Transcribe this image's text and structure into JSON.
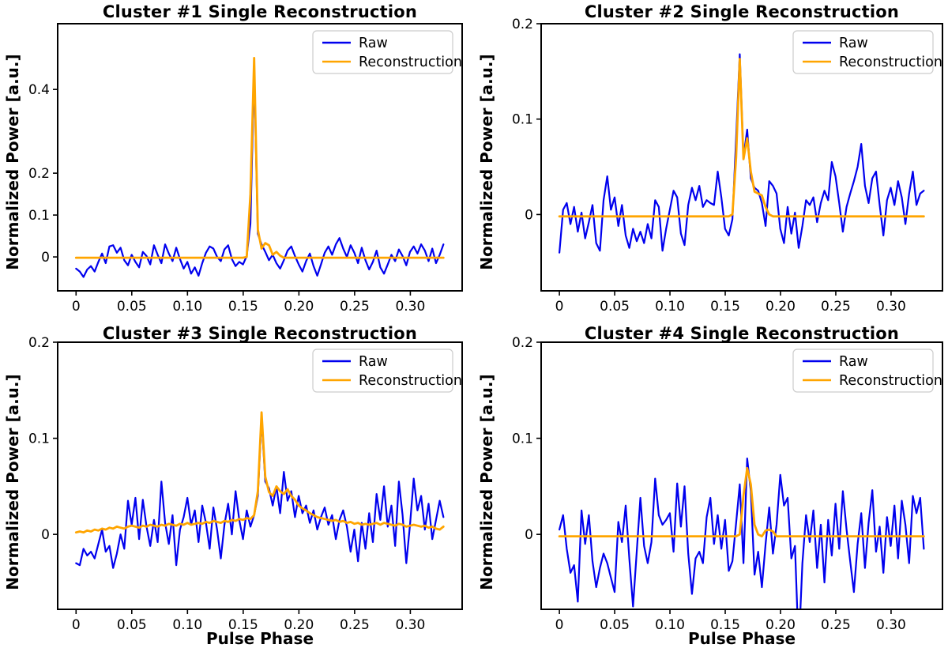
{
  "chart_data": [
    {
      "type": "line",
      "title": "Cluster #1 Single Reconstruction",
      "ylabel": "Normalized Power [a.u.]",
      "x_start": 0,
      "x_step": 0.00333,
      "xlim": [
        -0.0165,
        0.3465
      ],
      "ylim": [
        -0.081,
        0.557
      ],
      "xtick_values": [
        0,
        0.05,
        0.1,
        0.15,
        0.2,
        0.25,
        0.3
      ],
      "xtick_labels": [
        "0",
        "0.05",
        "0.10",
        "0.15",
        "0.20",
        "0.25",
        "0.30"
      ],
      "ytick_values": [
        0,
        0.1,
        0.2,
        0.4
      ],
      "ytick_labels": [
        "0",
        "0.1",
        "0.2",
        "0.4"
      ],
      "grid": false,
      "legend_position": "upper right",
      "series": [
        {
          "name": "Raw",
          "color": "#0000EE",
          "line_width": 2.2,
          "values": [
            -0.028,
            -0.035,
            -0.048,
            -0.03,
            -0.022,
            -0.035,
            -0.012,
            0.008,
            -0.015,
            0.025,
            0.028,
            0.01,
            0.022,
            -0.008,
            -0.02,
            0.005,
            -0.012,
            -0.025,
            0.012,
            0.002,
            -0.018,
            0.028,
            0.005,
            -0.015,
            0.03,
            0.008,
            -0.01,
            0.022,
            -0.005,
            -0.028,
            -0.012,
            -0.04,
            -0.025,
            -0.045,
            -0.015,
            0.01,
            0.025,
            0.02,
            0.0,
            -0.01,
            0.018,
            0.028,
            -0.005,
            -0.022,
            -0.012,
            -0.018,
            0.002,
            0.08,
            0.443,
            0.055,
            0.03,
            0.012,
            -0.008,
            0.005,
            -0.015,
            -0.028,
            -0.008,
            0.015,
            0.025,
            0.002,
            -0.018,
            -0.035,
            -0.01,
            0.008,
            -0.022,
            -0.045,
            -0.018,
            0.01,
            0.025,
            0.005,
            0.03,
            0.045,
            0.02,
            0.0,
            0.028,
            0.01,
            -0.015,
            0.022,
            -0.008,
            -0.03,
            -0.012,
            0.015,
            -0.025,
            -0.04,
            -0.018,
            0.005,
            -0.01,
            0.018,
            0.002,
            -0.02,
            0.012,
            0.025,
            0.008,
            0.03,
            0.015,
            -0.01,
            0.02,
            -0.015,
            0.005,
            0.03
          ]
        },
        {
          "name": "Reconstruction",
          "color": "#FFA500",
          "line_width": 2.8,
          "values": [
            -0.002,
            -0.002,
            -0.002,
            -0.002,
            -0.002,
            -0.002,
            -0.002,
            -0.002,
            -0.002,
            -0.002,
            -0.002,
            -0.002,
            -0.002,
            -0.002,
            -0.002,
            -0.002,
            -0.002,
            -0.002,
            -0.002,
            -0.002,
            -0.002,
            -0.002,
            -0.002,
            -0.002,
            -0.002,
            -0.002,
            -0.002,
            -0.002,
            -0.002,
            -0.002,
            -0.002,
            -0.002,
            -0.002,
            -0.002,
            -0.002,
            -0.002,
            -0.002,
            -0.002,
            -0.002,
            -0.002,
            -0.002,
            -0.002,
            -0.002,
            -0.002,
            -0.002,
            -0.002,
            0.0,
            0.15,
            0.475,
            0.065,
            0.02,
            0.033,
            0.028,
            0.005,
            0.012,
            0.003,
            -0.002,
            -0.002,
            -0.002,
            -0.002,
            -0.002,
            -0.002,
            -0.002,
            -0.002,
            -0.002,
            -0.002,
            -0.002,
            -0.002,
            -0.002,
            -0.002,
            -0.002,
            -0.002,
            -0.002,
            -0.002,
            -0.002,
            -0.002,
            -0.002,
            -0.002,
            -0.002,
            -0.002,
            -0.002,
            -0.002,
            -0.002,
            -0.002,
            -0.002,
            -0.002,
            -0.002,
            -0.002,
            -0.002,
            -0.002,
            -0.002,
            -0.002,
            -0.002,
            -0.002,
            -0.002,
            -0.002,
            -0.002,
            -0.002,
            -0.002,
            -0.002
          ]
        }
      ]
    },
    {
      "type": "line",
      "title": "Cluster #2 Single Reconstruction",
      "ylabel": "Normalized Power [a.u.]",
      "x_start": 0,
      "x_step": 0.00333,
      "xlim": [
        -0.0165,
        0.3465
      ],
      "ylim": [
        -0.08,
        0.2
      ],
      "xtick_values": [
        0,
        0.05,
        0.1,
        0.15,
        0.2,
        0.25,
        0.3
      ],
      "xtick_labels": [
        "0",
        "0.05",
        "0.10",
        "0.15",
        "0.20",
        "0.25",
        "0.30"
      ],
      "ytick_values": [
        0,
        0.1,
        0.2
      ],
      "ytick_labels": [
        "0",
        "0.1",
        "0.2"
      ],
      "grid": false,
      "legend_position": "upper right",
      "series": [
        {
          "name": "Raw",
          "color": "#0000EE",
          "line_width": 2.2,
          "values": [
            -0.04,
            0.005,
            0.012,
            -0.01,
            0.008,
            -0.018,
            0.002,
            -0.025,
            -0.008,
            0.01,
            -0.03,
            -0.038,
            0.015,
            0.04,
            0.005,
            0.018,
            -0.012,
            0.01,
            -0.022,
            -0.035,
            -0.015,
            -0.028,
            -0.018,
            -0.03,
            -0.01,
            -0.025,
            0.015,
            0.008,
            -0.038,
            -0.015,
            0.005,
            0.025,
            0.018,
            -0.02,
            -0.032,
            0.01,
            0.028,
            0.015,
            0.03,
            0.008,
            0.015,
            0.012,
            0.01,
            0.045,
            0.018,
            -0.015,
            -0.022,
            -0.005,
            0.08,
            0.168,
            0.06,
            0.089,
            0.038,
            0.028,
            0.025,
            0.012,
            -0.012,
            0.035,
            0.03,
            0.022,
            -0.015,
            -0.03,
            0.008,
            -0.02,
            0.002,
            -0.035,
            -0.012,
            0.015,
            0.01,
            0.018,
            -0.008,
            0.012,
            0.025,
            0.015,
            0.055,
            0.04,
            0.012,
            -0.018,
            0.008,
            0.022,
            0.035,
            0.05,
            0.074,
            0.03,
            0.012,
            0.038,
            0.045,
            0.01,
            -0.022,
            0.015,
            0.028,
            0.01,
            0.035,
            0.018,
            -0.01,
            0.022,
            0.045,
            0.01,
            0.022,
            0.025
          ]
        },
        {
          "name": "Reconstruction",
          "color": "#FFA500",
          "line_width": 2.8,
          "values": [
            -0.002,
            -0.002,
            -0.002,
            -0.002,
            -0.002,
            -0.002,
            -0.002,
            -0.002,
            -0.002,
            -0.002,
            -0.002,
            -0.002,
            -0.002,
            -0.002,
            -0.002,
            -0.002,
            -0.002,
            -0.002,
            -0.002,
            -0.002,
            -0.002,
            -0.002,
            -0.002,
            -0.002,
            -0.002,
            -0.002,
            -0.002,
            -0.002,
            -0.002,
            -0.002,
            -0.002,
            -0.002,
            -0.002,
            -0.002,
            -0.002,
            -0.002,
            -0.002,
            -0.002,
            -0.002,
            -0.002,
            -0.002,
            -0.002,
            -0.002,
            -0.002,
            -0.002,
            -0.002,
            -0.002,
            0.0,
            0.06,
            0.163,
            0.058,
            0.08,
            0.045,
            0.024,
            0.022,
            0.02,
            0.008,
            0.0,
            -0.002,
            -0.002,
            -0.002,
            -0.002,
            -0.002,
            -0.002,
            -0.002,
            -0.002,
            -0.002,
            -0.002,
            -0.002,
            -0.002,
            -0.002,
            -0.002,
            -0.002,
            -0.002,
            -0.002,
            -0.002,
            -0.002,
            -0.002,
            -0.002,
            -0.002,
            -0.002,
            -0.002,
            -0.002,
            -0.002,
            -0.002,
            -0.002,
            -0.002,
            -0.002,
            -0.002,
            -0.002,
            -0.002,
            -0.002,
            -0.002,
            -0.002,
            -0.002,
            -0.002,
            -0.002,
            -0.002,
            -0.002,
            -0.002
          ]
        }
      ]
    },
    {
      "type": "line",
      "title": "Cluster #3 Single Reconstruction",
      "ylabel": "Normalized Power [a.u.]",
      "xlabel": "Pulse Phase",
      "x_start": 0,
      "x_step": 0.00333,
      "xlim": [
        -0.0165,
        0.3465
      ],
      "ylim": [
        -0.078,
        0.2
      ],
      "xtick_values": [
        0,
        0.05,
        0.1,
        0.15,
        0.2,
        0.25,
        0.3
      ],
      "xtick_labels": [
        "0",
        "0.05",
        "0.10",
        "0.15",
        "0.20",
        "0.25",
        "0.30"
      ],
      "ytick_values": [
        0,
        0.1,
        0.2
      ],
      "ytick_labels": [
        "0",
        "0.1",
        "0.2"
      ],
      "grid": false,
      "legend_position": "upper right",
      "series": [
        {
          "name": "Raw",
          "color": "#0000EE",
          "line_width": 2.2,
          "values": [
            -0.03,
            -0.032,
            -0.015,
            -0.022,
            -0.018,
            -0.025,
            -0.01,
            0.005,
            -0.018,
            -0.012,
            -0.035,
            -0.02,
            0.0,
            -0.015,
            0.035,
            0.01,
            0.038,
            -0.005,
            0.036,
            0.008,
            -0.012,
            0.015,
            -0.008,
            0.055,
            0.012,
            -0.01,
            0.02,
            -0.032,
            0.005,
            0.018,
            0.038,
            0.01,
            0.025,
            -0.008,
            0.03,
            0.012,
            -0.015,
            0.028,
            0.005,
            -0.025,
            0.01,
            0.032,
            0.0,
            0.045,
            0.015,
            -0.005,
            0.025,
            0.008,
            0.02,
            0.04,
            0.121,
            0.055,
            0.048,
            0.03,
            0.05,
            0.022,
            0.065,
            0.035,
            0.045,
            0.018,
            0.04,
            0.022,
            0.03,
            0.012,
            0.025,
            0.005,
            0.018,
            0.028,
            0.01,
            0.02,
            -0.005,
            0.015,
            0.025,
            0.008,
            -0.018,
            0.005,
            -0.028,
            0.012,
            -0.015,
            0.022,
            -0.008,
            0.042,
            0.015,
            0.05,
            0.008,
            0.03,
            -0.012,
            0.055,
            0.02,
            -0.03,
            0.01,
            0.058,
            0.025,
            0.04,
            0.005,
            0.032,
            -0.005,
            0.015,
            0.035,
            0.018
          ]
        },
        {
          "name": "Reconstruction",
          "color": "#FFA500",
          "line_width": 2.8,
          "values": [
            0.002,
            0.003,
            0.002,
            0.004,
            0.003,
            0.005,
            0.004,
            0.006,
            0.005,
            0.007,
            0.006,
            0.008,
            0.007,
            0.006,
            0.008,
            0.009,
            0.008,
            0.007,
            0.009,
            0.008,
            0.01,
            0.009,
            0.008,
            0.01,
            0.009,
            0.011,
            0.01,
            0.009,
            0.011,
            0.01,
            0.012,
            0.01,
            0.011,
            0.012,
            0.011,
            0.013,
            0.012,
            0.014,
            0.013,
            0.012,
            0.014,
            0.013,
            0.015,
            0.014,
            0.016,
            0.015,
            0.017,
            0.016,
            0.02,
            0.045,
            0.127,
            0.06,
            0.044,
            0.04,
            0.05,
            0.045,
            0.042,
            0.047,
            0.04,
            0.036,
            0.03,
            0.027,
            0.025,
            0.022,
            0.02,
            0.018,
            0.017,
            0.016,
            0.015,
            0.014,
            0.015,
            0.013,
            0.014,
            0.012,
            0.013,
            0.011,
            0.012,
            0.01,
            0.011,
            0.01,
            0.011,
            0.012,
            0.01,
            0.012,
            0.011,
            0.01,
            0.009,
            0.011,
            0.01,
            0.008,
            0.009,
            0.01,
            0.009,
            0.008,
            0.009,
            0.007,
            0.008,
            0.006,
            0.005,
            0.008
          ]
        }
      ]
    },
    {
      "type": "line",
      "title": "Cluster #4 Single Reconstruction",
      "ylabel": "Normalized Power [a.u.]",
      "xlabel": "Pulse Phase",
      "x_start": 0,
      "x_step": 0.00333,
      "xlim": [
        -0.0165,
        0.3465
      ],
      "ylim": [
        -0.078,
        0.2
      ],
      "xtick_values": [
        0,
        0.05,
        0.1,
        0.15,
        0.2,
        0.25,
        0.3
      ],
      "xtick_labels": [
        "0",
        "0.05",
        "0.10",
        "0.15",
        "0.20",
        "0.25",
        "0.30"
      ],
      "ytick_values": [
        0,
        0.1,
        0.2
      ],
      "ytick_labels": [
        "0",
        "0.1",
        "0.2"
      ],
      "grid": false,
      "legend_position": "upper right",
      "series": [
        {
          "name": "Raw",
          "color": "#0000EE",
          "line_width": 2.2,
          "values": [
            0.005,
            0.02,
            -0.015,
            -0.04,
            -0.032,
            -0.07,
            0.025,
            -0.01,
            0.02,
            -0.028,
            -0.055,
            -0.035,
            -0.02,
            -0.03,
            -0.045,
            -0.06,
            0.013,
            -0.008,
            0.03,
            -0.025,
            -0.075,
            -0.018,
            0.038,
            -0.012,
            -0.03,
            -0.008,
            0.058,
            0.02,
            0.01,
            0.015,
            0.022,
            -0.018,
            0.053,
            0.008,
            0.05,
            -0.02,
            -0.062,
            -0.025,
            -0.018,
            -0.03,
            0.018,
            0.038,
            -0.01,
            0.02,
            -0.015,
            0.015,
            -0.038,
            -0.028,
            0.012,
            0.052,
            -0.03,
            0.079,
            0.045,
            -0.042,
            -0.018,
            -0.055,
            -0.01,
            0.028,
            -0.02,
            0.01,
            0.062,
            0.03,
            0.038,
            -0.025,
            -0.012,
            -0.12,
            -0.03,
            0.02,
            -0.008,
            0.025,
            -0.035,
            0.01,
            -0.05,
            0.015,
            -0.022,
            0.032,
            -0.015,
            0.045,
            0.005,
            -0.028,
            -0.06,
            -0.01,
            0.022,
            -0.035,
            0.012,
            0.046,
            -0.018,
            0.008,
            -0.04,
            0.018,
            -0.012,
            0.03,
            -0.025,
            0.035,
            0.01,
            -0.03,
            0.04,
            0.022,
            0.038,
            -0.015
          ]
        },
        {
          "name": "Reconstruction",
          "color": "#FFA500",
          "line_width": 2.8,
          "values": [
            -0.002,
            -0.002,
            -0.002,
            -0.002,
            -0.002,
            -0.002,
            -0.002,
            -0.002,
            -0.002,
            -0.002,
            -0.002,
            -0.002,
            -0.002,
            -0.002,
            -0.002,
            -0.002,
            -0.002,
            -0.002,
            -0.002,
            -0.002,
            -0.002,
            -0.002,
            -0.002,
            -0.002,
            -0.002,
            -0.002,
            -0.002,
            -0.002,
            -0.002,
            -0.002,
            -0.002,
            -0.002,
            -0.002,
            -0.002,
            -0.002,
            -0.002,
            -0.002,
            -0.002,
            -0.002,
            -0.002,
            -0.002,
            -0.002,
            -0.002,
            -0.002,
            -0.002,
            -0.002,
            -0.002,
            -0.002,
            -0.002,
            0.0,
            0.04,
            0.069,
            0.052,
            0.01,
            0.0,
            -0.002,
            0.004,
            0.005,
            0.003,
            -0.002,
            -0.002,
            -0.002,
            -0.002,
            -0.002,
            -0.002,
            -0.002,
            -0.002,
            -0.002,
            -0.002,
            -0.002,
            -0.002,
            -0.002,
            -0.002,
            -0.002,
            -0.002,
            -0.002,
            -0.002,
            -0.002,
            -0.002,
            -0.002,
            -0.002,
            -0.002,
            -0.002,
            -0.002,
            -0.002,
            -0.002,
            -0.002,
            -0.002,
            -0.002,
            -0.002,
            -0.002,
            -0.002,
            -0.002,
            -0.002,
            -0.002,
            -0.002,
            -0.002,
            -0.002,
            -0.002,
            -0.002
          ]
        }
      ]
    }
  ]
}
